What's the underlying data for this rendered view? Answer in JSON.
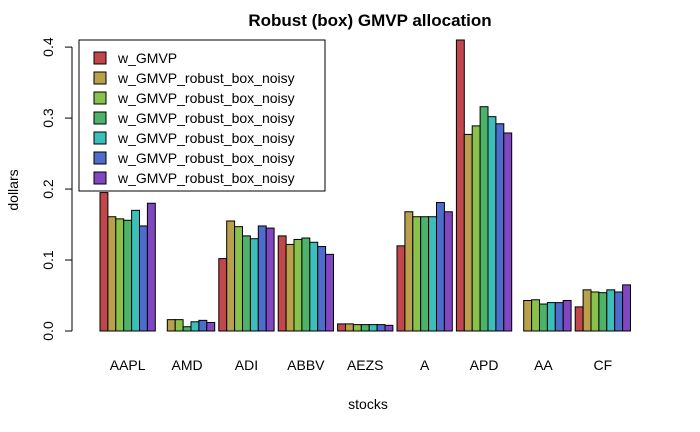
{
  "chart_data": {
    "type": "bar",
    "title": "Robust (box) GMVP allocation",
    "xlabel": "stocks",
    "ylabel": "dollars",
    "ylim": [
      0,
      0.41
    ],
    "yticks": [
      "0.0",
      "0.1",
      "0.2",
      "0.3",
      "0.4"
    ],
    "ytick_values": [
      0,
      0.1,
      0.2,
      0.3,
      0.4
    ],
    "categories": [
      "AAPL",
      "AMD",
      "ADI",
      "ABBV",
      "AEZS",
      "A",
      "APD",
      "AA",
      "CF"
    ],
    "grid": false,
    "legend_position": "top-left",
    "series": [
      {
        "name": "w_GMVP",
        "color": "#C0474B",
        "values": [
          0.195,
          0.0,
          0.102,
          0.134,
          0.01,
          0.12,
          0.41,
          0.0,
          0.034
        ]
      },
      {
        "name": "w_GMVP_robust_box_noisy",
        "color": "#B9A04A",
        "values": [
          0.161,
          0.016,
          0.155,
          0.122,
          0.01,
          0.168,
          0.277,
          0.043,
          0.058
        ]
      },
      {
        "name": "w_GMVP_robust_box_noisy",
        "color": "#88C24A",
        "values": [
          0.158,
          0.016,
          0.147,
          0.129,
          0.009,
          0.161,
          0.289,
          0.044,
          0.055
        ]
      },
      {
        "name": "w_GMVP_robust_box_noisy",
        "color": "#4DB36A",
        "values": [
          0.156,
          0.006,
          0.134,
          0.131,
          0.009,
          0.161,
          0.316,
          0.038,
          0.054
        ]
      },
      {
        "name": "w_GMVP_robust_box_noisy",
        "color": "#3CBFBB",
        "values": [
          0.17,
          0.013,
          0.13,
          0.125,
          0.009,
          0.161,
          0.302,
          0.04,
          0.058
        ]
      },
      {
        "name": "w_GMVP_robust_box_noisy",
        "color": "#4D6CCB",
        "values": [
          0.148,
          0.015,
          0.148,
          0.119,
          0.009,
          0.181,
          0.292,
          0.04,
          0.055
        ]
      },
      {
        "name": "w_GMVP_robust_box_noisy",
        "color": "#8147C1",
        "values": [
          0.18,
          0.012,
          0.145,
          0.108,
          0.008,
          0.168,
          0.279,
          0.043,
          0.065
        ]
      }
    ]
  }
}
